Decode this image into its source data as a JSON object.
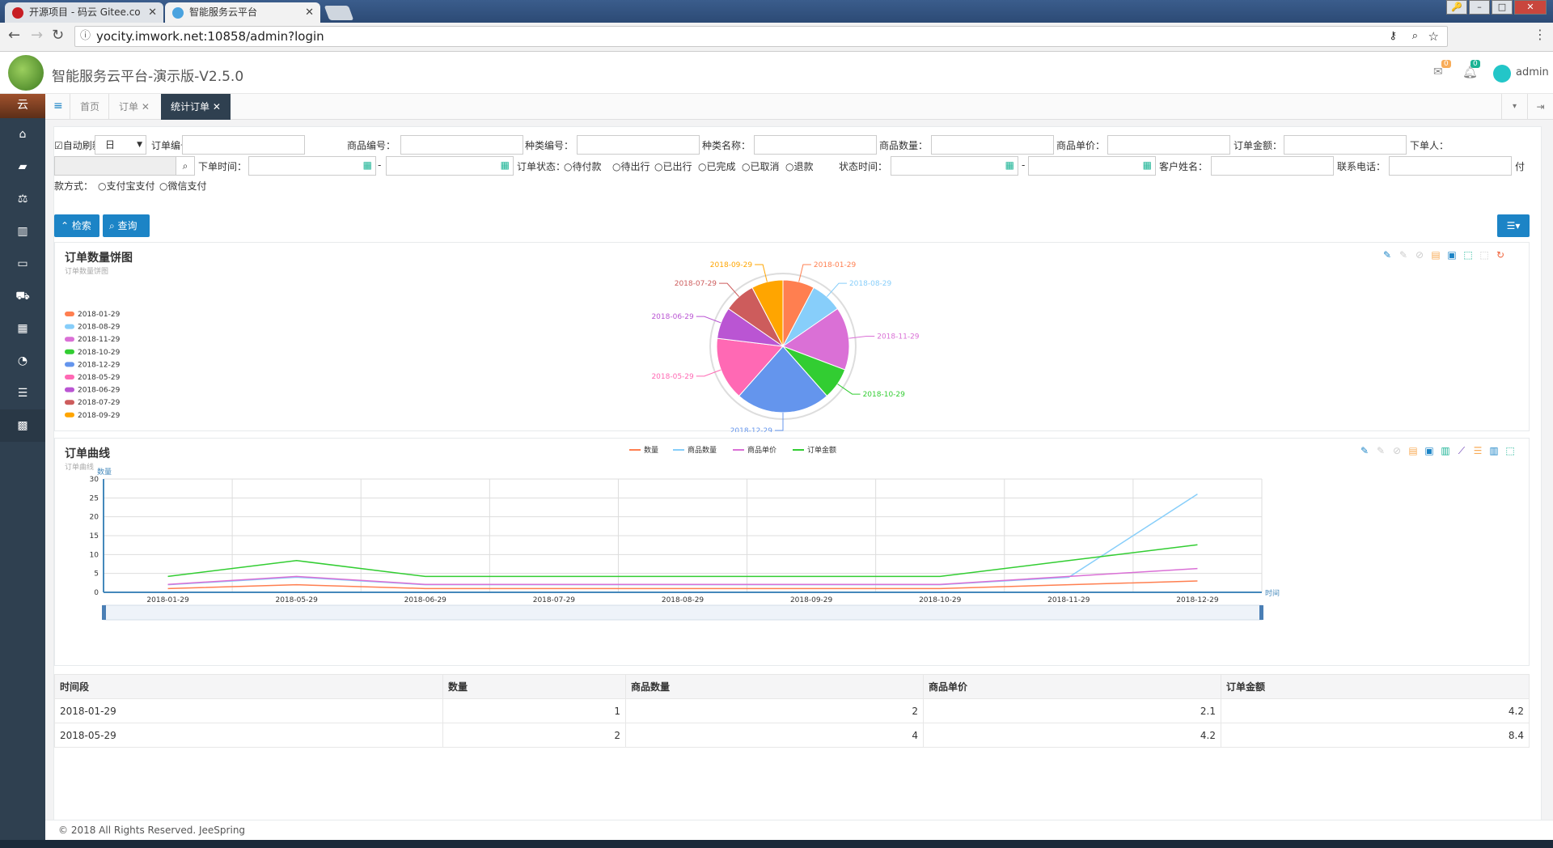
{
  "browser": {
    "tabs": [
      {
        "title": "开源项目 - 码云 Gitee.co",
        "close": "✕"
      },
      {
        "title": "智能服务云平台",
        "close": "✕"
      }
    ],
    "url": "yocity.imwork.net:10858/admin?login",
    "window_buttons": [
      "🔑",
      "–",
      "□",
      "✕"
    ]
  },
  "app": {
    "title": "智能服务云平台-演示版-V2.5.0",
    "mail_badge": "0",
    "bell_badge": "0",
    "user": "admin",
    "side_top": "云"
  },
  "sidebar_icons": [
    "home-icon",
    "map-icon",
    "balance-icon",
    "chart-icon",
    "desktop-icon",
    "cart-icon",
    "grid-icon",
    "dashboard-icon",
    "database-icon",
    "apps-icon"
  ],
  "page_tabs": [
    {
      "label": "首页",
      "close": ""
    },
    {
      "label": "订单",
      "close": "✕"
    },
    {
      "label": "统计订单",
      "close": "✕"
    }
  ],
  "filters": {
    "auto_refresh": "自动刷新",
    "period": "日",
    "order_no": "订单编号：",
    "goods_no": "商品编号：",
    "type_no": "种类编号：",
    "type_name": "种类名称：",
    "goods_qty": "商品数量：",
    "goods_price": "商品单价：",
    "order_amount": "订单金额：",
    "buyer": "下单人：",
    "order_time": "下单时间：",
    "dash": "-",
    "order_status": "订单状态：",
    "status_options": [
      "待付款",
      "待出行",
      "已出行",
      "已完成",
      "已取消",
      "退款"
    ],
    "status_time": "状态时间：",
    "customer_name": "客户姓名：",
    "phone": "联系电话：",
    "pay_wrap": "付",
    "pay_method": "款方式：",
    "pay_options": [
      "支付宝支付",
      "微信支付"
    ]
  },
  "buttons": {
    "search": "检索",
    "query": "查询"
  },
  "pie_panel": {
    "title": "订单数量饼图",
    "subtitle": "订单数量饼图"
  },
  "line_panel": {
    "title": "订单曲线",
    "subtitle": "订单曲线"
  },
  "chart_data": [
    {
      "type": "pie",
      "title": "订单数量饼图",
      "subtitle": "订单数量饼图",
      "legend_position": "left",
      "categories": [
        "2018-01-29",
        "2018-08-29",
        "2018-11-29",
        "2018-10-29",
        "2018-12-29",
        "2018-05-29",
        "2018-06-29",
        "2018-07-29",
        "2018-09-29"
      ],
      "values": [
        1,
        1,
        2,
        1,
        3,
        2,
        1,
        1,
        1
      ],
      "colors": [
        "#ff7f50",
        "#87cefa",
        "#da70d6",
        "#32cd32",
        "#6495ed",
        "#ff69b4",
        "#ba55d3",
        "#cd5c5c",
        "#ffa500"
      ]
    },
    {
      "type": "line",
      "title": "订单曲线",
      "subtitle": "订单曲线",
      "ylabel": "数量",
      "xlabel": "时间",
      "ylim": [
        0,
        30
      ],
      "yticks": [
        0,
        5,
        10,
        15,
        20,
        25,
        30
      ],
      "grid": true,
      "legend_position": "top",
      "categories": [
        "2018-01-29",
        "2018-05-29",
        "2018-06-29",
        "2018-07-29",
        "2018-08-29",
        "2018-09-29",
        "2018-10-29",
        "2018-11-29",
        "2018-12-29"
      ],
      "series": [
        {
          "name": "数量",
          "color": "#ff7f50",
          "values": [
            1,
            2,
            1,
            1,
            1,
            1,
            1,
            2,
            3
          ]
        },
        {
          "name": "商品数量",
          "color": "#87cefa",
          "values": [
            2,
            4,
            2,
            2,
            2,
            2,
            2,
            4,
            26
          ]
        },
        {
          "name": "商品单价",
          "color": "#da70d6",
          "values": [
            2.1,
            4.2,
            2.1,
            2.1,
            2.1,
            2.1,
            2.1,
            4.2,
            6.3
          ]
        },
        {
          "name": "订单金额",
          "color": "#32cd32",
          "values": [
            4.2,
            8.4,
            4.2,
            4.2,
            4.2,
            4.2,
            4.2,
            8.4,
            12.6
          ]
        }
      ]
    }
  ],
  "table": {
    "headers": [
      "时间段",
      "数量",
      "商品数量",
      "商品单价",
      "订单金额"
    ],
    "rows": [
      [
        "2018-01-29",
        "1",
        "2",
        "2.1",
        "4.2"
      ],
      [
        "2018-05-29",
        "2",
        "4",
        "4.2",
        "8.4"
      ]
    ]
  },
  "footer": "© 2018 All Rights Reserved. JeeSpring"
}
